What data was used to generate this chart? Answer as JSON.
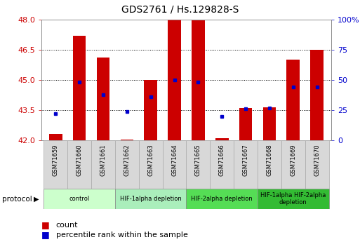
{
  "title": "GDS2761 / Hs.129828-S",
  "samples": [
    "GSM71659",
    "GSM71660",
    "GSM71661",
    "GSM71662",
    "GSM71663",
    "GSM71664",
    "GSM71665",
    "GSM71666",
    "GSM71667",
    "GSM71668",
    "GSM71669",
    "GSM71670"
  ],
  "count_values": [
    42.3,
    47.2,
    46.1,
    42.05,
    45.0,
    48.0,
    47.95,
    42.1,
    43.6,
    43.65,
    46.0,
    46.5
  ],
  "percentile_values": [
    22,
    48,
    38,
    24,
    36,
    50,
    48,
    20,
    26,
    27,
    44,
    44
  ],
  "y_min": 42,
  "y_max": 48,
  "y_ticks": [
    42,
    43.5,
    45,
    46.5,
    48
  ],
  "y2_ticks": [
    0,
    25,
    50,
    75,
    100
  ],
  "bar_color": "#cc0000",
  "dot_color": "#0000cc",
  "bar_width": 0.55,
  "protocols": [
    {
      "label": "control",
      "start": 0,
      "end": 2,
      "color": "#ccffcc"
    },
    {
      "label": "HIF-1alpha depletion",
      "start": 3,
      "end": 5,
      "color": "#aaeebb"
    },
    {
      "label": "HIF-2alpha depletion",
      "start": 6,
      "end": 8,
      "color": "#55dd55"
    },
    {
      "label": "HIF-1alpha HIF-2alpha\ndepletion",
      "start": 9,
      "end": 11,
      "color": "#33bb33"
    }
  ],
  "grid_yticks": [
    43.5,
    45,
    46.5
  ],
  "bg_color": "#ffffff",
  "tick_color_left": "#cc0000",
  "tick_color_right": "#0000cc",
  "xtick_bg": "#d8d8d8",
  "xtick_border": "#aaaaaa"
}
